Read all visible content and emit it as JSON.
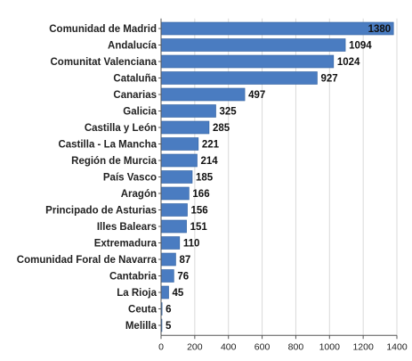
{
  "chart_data": {
    "type": "bar",
    "orientation": "horizontal",
    "categories": [
      "Comunidad de Madrid",
      "Andalucía",
      "Comunitat Valenciana",
      "Cataluña",
      "Canarias",
      "Galicia",
      "Castilla y León",
      "Castilla - La Mancha",
      "Región de Murcia",
      "País Vasco",
      "Aragón",
      "Principado de Asturias",
      "Illes Balears",
      "Extremadura",
      "Comunidad Foral de Navarra",
      "Cantabria",
      "La Rioja",
      "Ceuta",
      "Melilla"
    ],
    "values": [
      1380,
      1094,
      1024,
      927,
      497,
      325,
      285,
      221,
      214,
      185,
      166,
      156,
      151,
      110,
      87,
      76,
      45,
      6,
      5
    ],
    "value_labels": [
      "1380",
      "1094",
      "1024",
      "927",
      "497",
      "325",
      "285",
      "221",
      "214",
      "185",
      "166",
      "156",
      "151",
      "110",
      "87",
      "76",
      "45",
      "6",
      "5"
    ],
    "xlim": [
      0,
      1400
    ],
    "xticks": [
      0,
      200,
      400,
      600,
      800,
      1000,
      1200,
      1400
    ],
    "xtick_labels": [
      "0",
      "200",
      "400",
      "600",
      "800",
      "1000",
      "1200",
      "1400"
    ],
    "grid": "vertical",
    "title": "",
    "xlabel": "",
    "ylabel": "",
    "colors": {
      "bar": "#4a7cc1",
      "bar_stroke": "#2f5f9e",
      "grid": "#d9d9d9",
      "axis": "#555555"
    }
  }
}
